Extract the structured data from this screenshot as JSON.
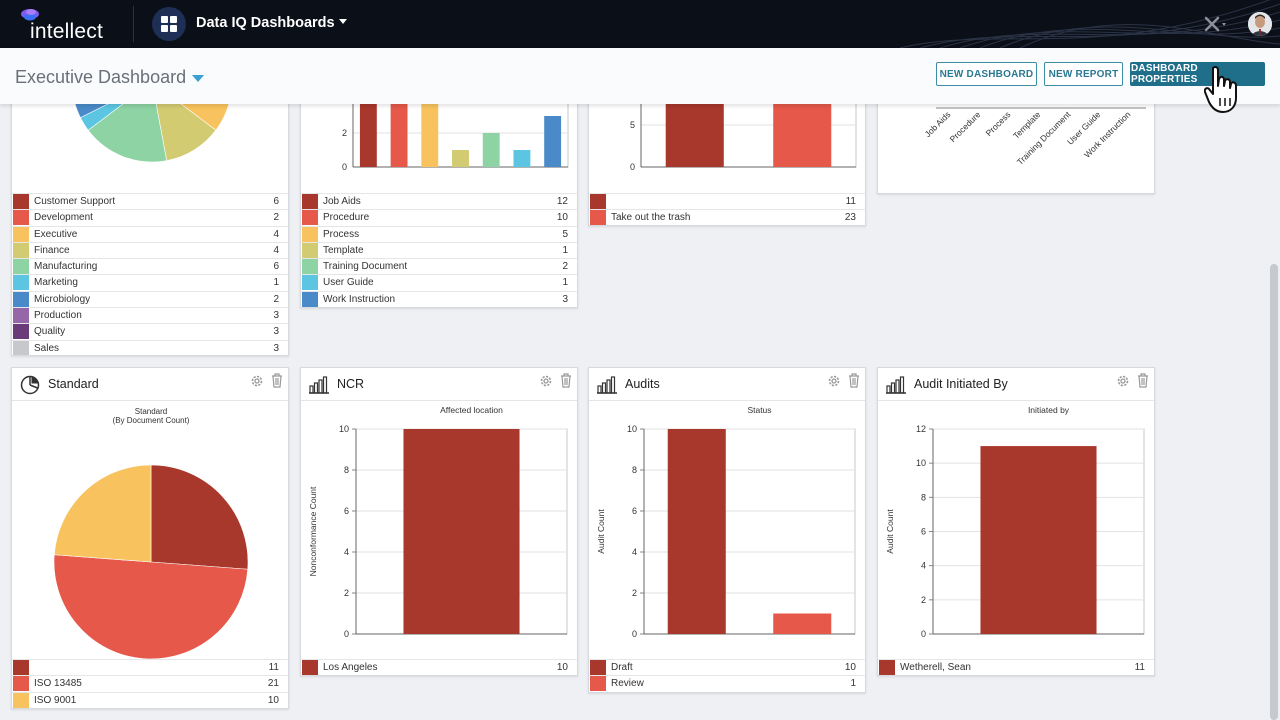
{
  "topbar": {
    "logo_text": "intellect",
    "app_title": "Data IQ Dashboards"
  },
  "subheader": {
    "dashboard_title": "Executive Dashboard",
    "buttons": {
      "new_dashboard": "NEW DASHBOARD",
      "new_report": "NEW REPORT",
      "dashboard_properties": "DASHBOARD PROPERTIES"
    }
  },
  "colors": {
    "topbar_bg": "#0b0f17",
    "primary_button": "#1f6f8b",
    "accent_caret": "#3a9fd2"
  },
  "top_cards": {
    "departments": {
      "legend": [
        {
          "label": "Customer Support",
          "value": "6",
          "color": "#a8372c"
        },
        {
          "label": "Development",
          "value": "2",
          "color": "#e5584a"
        },
        {
          "label": "Executive",
          "value": "4",
          "color": "#f8c35e"
        },
        {
          "label": "Finance",
          "value": "4",
          "color": "#d2cb72"
        },
        {
          "label": "Manufacturing",
          "value": "6",
          "color": "#8dd3a3"
        },
        {
          "label": "Marketing",
          "value": "1",
          "color": "#5cc6e2"
        },
        {
          "label": "Microbiology",
          "value": "2",
          "color": "#4a8ac8"
        },
        {
          "label": "Production",
          "value": "3",
          "color": "#9567a8"
        },
        {
          "label": "Quality",
          "value": "3",
          "color": "#6b3a78"
        },
        {
          "label": "Sales",
          "value": "3",
          "color": "#c7c8cb"
        }
      ]
    },
    "document_types": {
      "legend": [
        {
          "label": "Job Aids",
          "value": "12",
          "color": "#a8372c"
        },
        {
          "label": "Procedure",
          "value": "10",
          "color": "#e5584a"
        },
        {
          "label": "Process",
          "value": "5",
          "color": "#f8c35e"
        },
        {
          "label": "Template",
          "value": "1",
          "color": "#d2cb72"
        },
        {
          "label": "Training Document",
          "value": "2",
          "color": "#8dd3a3"
        },
        {
          "label": "User Guide",
          "value": "1",
          "color": "#5cc6e2"
        },
        {
          "label": "Work Instruction",
          "value": "3",
          "color": "#4a8ac8"
        }
      ]
    },
    "tasks": {
      "legend": [
        {
          "label": "",
          "value": "11",
          "color": "#a8372c"
        },
        {
          "label": "Take out the trash",
          "value": "23",
          "color": "#e5584a"
        }
      ]
    }
  },
  "chart_data": [
    {
      "type": "pie",
      "categories": [
        "Customer Support",
        "Development",
        "Executive",
        "Finance",
        "Manufacturing",
        "Marketing",
        "Microbiology",
        "Production",
        "Quality",
        "Sales"
      ],
      "values": [
        6,
        2,
        4,
        4,
        6,
        1,
        2,
        3,
        3,
        3
      ],
      "colors": [
        "#a8372c",
        "#e5584a",
        "#f8c35e",
        "#d2cb72",
        "#8dd3a3",
        "#5cc6e2",
        "#4a8ac8",
        "#9567a8",
        "#6b3a78",
        "#c7c8cb"
      ]
    },
    {
      "type": "bar",
      "categories": [
        "Job Aids",
        "Procedure",
        "Process",
        "Template",
        "Training Document",
        "User Guide",
        "Work Instruction"
      ],
      "values": [
        12,
        10,
        5,
        1,
        2,
        1,
        3
      ],
      "colors": [
        "#a8372c",
        "#e5584a",
        "#f8c35e",
        "#d2cb72",
        "#8dd3a3",
        "#5cc6e2",
        "#4a8ac8"
      ],
      "yticks": [
        "0",
        "2"
      ],
      "ylim": [
        0,
        12
      ]
    },
    {
      "type": "bar",
      "categories": [
        "",
        "Take out the trash"
      ],
      "values": [
        11,
        23
      ],
      "colors": [
        "#a8372c",
        "#e5584a"
      ],
      "yticks": [
        "0",
        "5"
      ],
      "ylim": [
        0,
        25
      ]
    },
    {
      "type": "bar",
      "categories": [
        "Job Aids",
        "Procedure",
        "Process",
        "Template",
        "Training Document",
        "User Guide",
        "Work Instruction"
      ]
    },
    {
      "type": "pie",
      "card_title": "Standard",
      "title": "Standard",
      "subtitle": "(By Document Count)",
      "categories": [
        "",
        "ISO 13485",
        "ISO 9001"
      ],
      "values": [
        11,
        21,
        10
      ],
      "colors": [
        "#a8372c",
        "#e5584a",
        "#f8c35e"
      ]
    },
    {
      "type": "bar",
      "card_title": "NCR",
      "title": "Affected location",
      "ylabel": "Nonconformance Count",
      "categories": [
        "Los Angeles"
      ],
      "values": [
        10
      ],
      "colors": [
        "#a8372c"
      ],
      "ylim": [
        0,
        10
      ],
      "yticks": [
        0,
        2,
        4,
        6,
        8,
        10
      ]
    },
    {
      "type": "bar",
      "card_title": "Audits",
      "title": "Status",
      "ylabel": "Audit Count",
      "categories": [
        "Draft",
        "Review"
      ],
      "values": [
        10,
        1
      ],
      "colors": [
        "#a8372c",
        "#e5584a"
      ],
      "ylim": [
        0,
        10
      ],
      "yticks": [
        0,
        2,
        4,
        6,
        8,
        10
      ]
    },
    {
      "type": "bar",
      "card_title": "Audit Initiated By",
      "title": "Initiated by",
      "ylabel": "Audit Count",
      "categories": [
        "Wetherell, Sean"
      ],
      "values": [
        11
      ],
      "colors": [
        "#a8372c"
      ],
      "ylim": [
        0,
        12
      ],
      "yticks": [
        0,
        2,
        4,
        6,
        8,
        10,
        12
      ]
    }
  ]
}
